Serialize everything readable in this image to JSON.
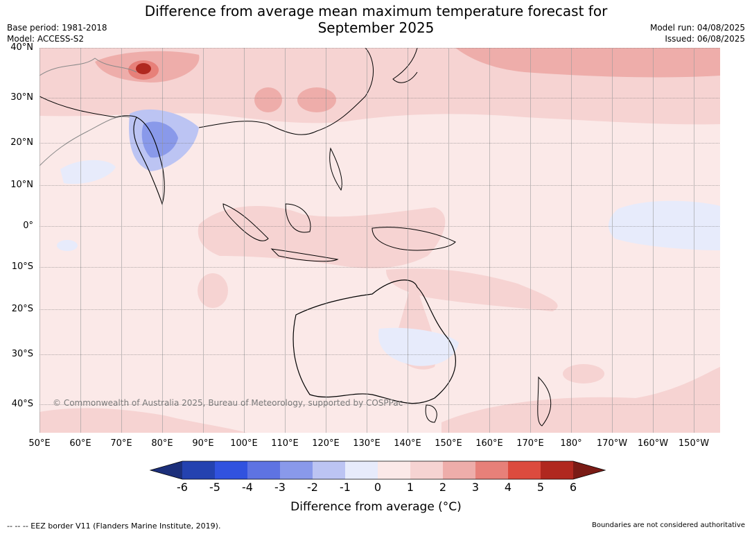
{
  "title_line1": "Difference from average mean maximum temperature forecast for",
  "title_line2": "September 2025",
  "meta_left": {
    "base_period": "Base period: 1981-2018",
    "model": "Model: ACCESS-S2"
  },
  "meta_right": {
    "model_run": "Model run: 04/08/2025",
    "issued": "Issued: 06/08/2025"
  },
  "lat_labels": [
    "40°N",
    "30°N",
    "20°N",
    "10°N",
    "0°",
    "10°S",
    "20°S",
    "30°S",
    "40°S"
  ],
  "lon_labels": [
    "50°E",
    "60°E",
    "70°E",
    "80°E",
    "90°E",
    "100°E",
    "110°E",
    "120°E",
    "130°E",
    "140°E",
    "150°E",
    "160°E",
    "170°E",
    "180°",
    "170°W",
    "160°W",
    "150°W"
  ],
  "copyright": "© Commonwealth of Australia 2025, Bureau of Meteorology, supported by COSPPac",
  "colorbar": {
    "ticks": [
      "-6",
      "-5",
      "-4",
      "-3",
      "-2",
      "-1",
      "0",
      "1",
      "2",
      "3",
      "4",
      "5",
      "6"
    ],
    "colors": [
      "#1c2f7a",
      "#2442b0",
      "#3152df",
      "#5e73e2",
      "#8999ea",
      "#bcc4f3",
      "#e7ebfb",
      "#fbe9e8",
      "#f6d3d2",
      "#eeadaa",
      "#e78079",
      "#dc4b3e",
      "#b0281f",
      "#7a1b15"
    ],
    "label": "Difference from average (°C)"
  },
  "footer_left": "--  --  -- EEZ border V11 (Flanders Marine Institute, 2019).",
  "footer_right": "Boundaries are not considered authoritative"
}
